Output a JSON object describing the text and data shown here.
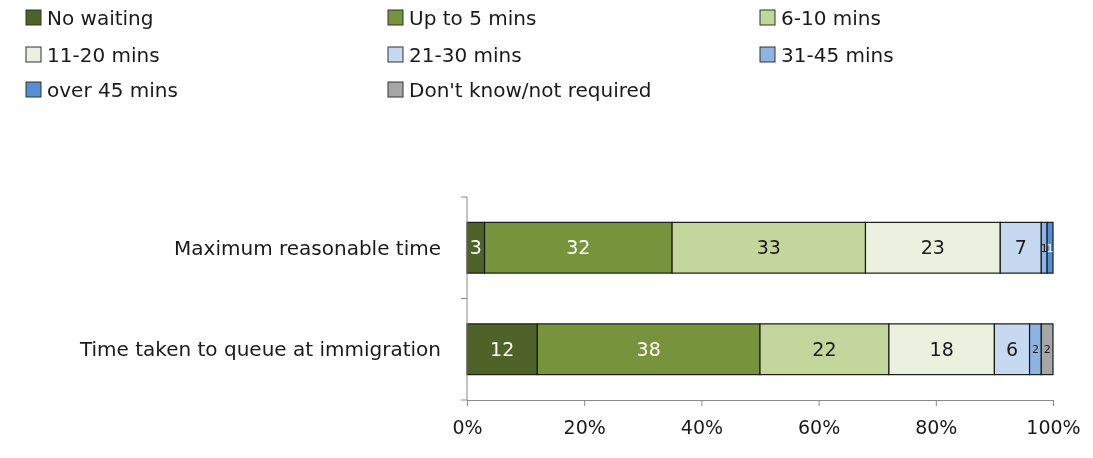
{
  "chart_data": {
    "type": "bar",
    "orientation": "horizontal",
    "stacked": true,
    "categories": [
      "Maximum reasonable time",
      "Time taken to queue at immigration"
    ],
    "series": [
      {
        "name": "No waiting",
        "color": "#4f6228",
        "values": [
          3,
          12
        ],
        "value_labels": [
          "3",
          "12"
        ]
      },
      {
        "name": "Up to 5 mins",
        "color": "#77933c",
        "values": [
          32,
          38
        ],
        "value_labels": [
          "32",
          "38"
        ]
      },
      {
        "name": "6-10 mins",
        "color": "#c3d69b",
        "values": [
          33,
          22
        ],
        "value_labels": [
          "33",
          "22"
        ]
      },
      {
        "name": "11-20 mins",
        "color": "#ebf1de",
        "values": [
          23,
          18
        ],
        "value_labels": [
          "23",
          "18"
        ]
      },
      {
        "name": "21-30 mins",
        "color": "#c6d9f1",
        "values": [
          7,
          6
        ],
        "value_labels": [
          "7",
          "6"
        ]
      },
      {
        "name": "31-45 mins",
        "color": "#8eb4e3",
        "values": [
          1,
          2
        ],
        "value_labels": [
          "1",
          "2"
        ]
      },
      {
        "name": "over 45 mins",
        "color": "#558ed5",
        "values": [
          1,
          null
        ],
        "value_labels": [
          "1",
          null
        ]
      },
      {
        "name": "Don't know/not required",
        "color": "#a6a6a6",
        "values": [
          null,
          2
        ],
        "value_labels": [
          null,
          "2"
        ]
      }
    ],
    "xlim": [
      0,
      100
    ],
    "xticks": [
      {
        "value": 0,
        "label": "0%"
      },
      {
        "value": 20,
        "label": "20%"
      },
      {
        "value": 40,
        "label": "40%"
      },
      {
        "value": 60,
        "label": "60%"
      },
      {
        "value": 80,
        "label": "80%"
      },
      {
        "value": 100,
        "label": "100%"
      }
    ],
    "legend": "top left",
    "grid": false
  }
}
